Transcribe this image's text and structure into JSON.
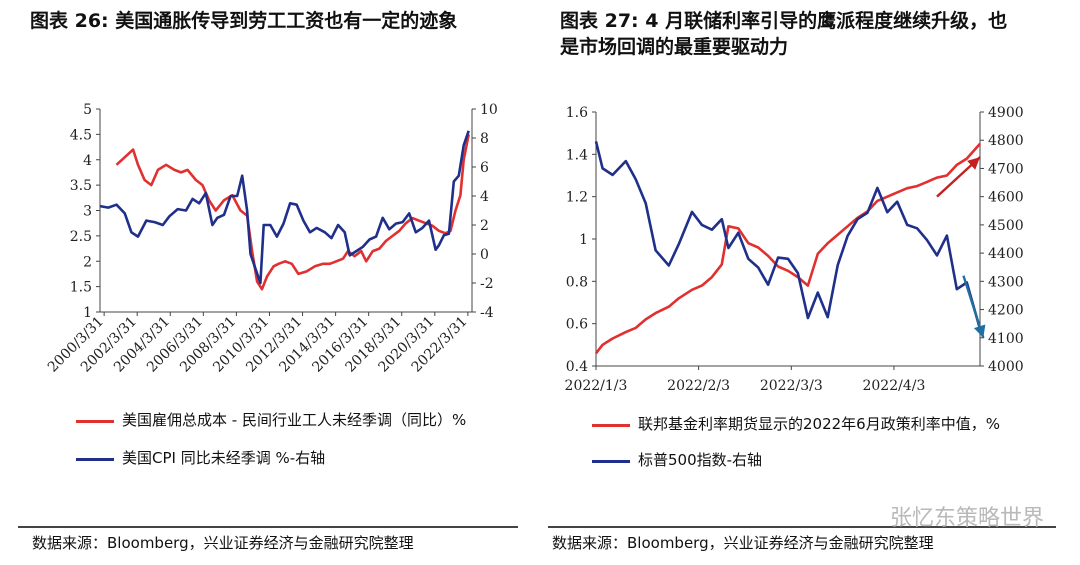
{
  "left": {
    "title": "图表 26:  美国通胀传导到劳工工资也有一定的迹象",
    "legend": [
      {
        "label": "美国雇佣总成本 - 民间行业工人未经季调（同比）%",
        "color": "#e03030"
      },
      {
        "label": "美国CPI 同比未经季调 %-右轴",
        "color": "#1f2f8a"
      }
    ],
    "source": "数据来源：Bloomberg，兴业证券经济与金融研究院整理"
  },
  "right": {
    "title_line1": "图表 27:  4 月联储利率引导的鹰派程度继续升级，也",
    "title_line2": "是市场回调的最重要驱动力",
    "legend": [
      {
        "label": "联邦基金利率期货显示的2022年6月政策利率中值，%",
        "color": "#e03030"
      },
      {
        "label": "标普500指数-右轴",
        "color": "#1f2f8a"
      }
    ],
    "source": "数据来源：Bloomberg，兴业证券经济与金融研究院整理"
  },
  "watermark": "张忆东策略世界",
  "chart_data": [
    {
      "type": "line",
      "xlabels": [
        "2000/3/31",
        "2002/3/31",
        "2004/3/31",
        "2006/3/31",
        "2008/3/31",
        "2010/3/31",
        "2012/3/31",
        "2014/3/31",
        "2016/3/31",
        "2018/3/31",
        "2020/3/31",
        "2022/3/31"
      ],
      "x_range": [
        2000.0,
        2022.5
      ],
      "y_left": {
        "min": 1,
        "max": 5,
        "ticks": [
          1,
          1.5,
          2,
          2.5,
          3,
          3.5,
          4,
          4.5,
          5
        ]
      },
      "y_right": {
        "min": -4,
        "max": 10,
        "ticks": [
          -4,
          -2,
          0,
          2,
          4,
          6,
          8,
          10
        ]
      },
      "grid": false,
      "series": [
        {
          "axis": "left",
          "color": "#e03030",
          "x": [
            2001.0,
            2001.5,
            2002.0,
            2002.3,
            2002.7,
            2003.1,
            2003.5,
            2004.0,
            2004.5,
            2004.9,
            2005.3,
            2005.8,
            2006.2,
            2006.6,
            2007.0,
            2007.5,
            2008.0,
            2008.5,
            2008.9,
            2009.2,
            2009.5,
            2009.8,
            2010.1,
            2010.5,
            2010.8,
            2011.2,
            2011.6,
            2012.0,
            2012.5,
            2013.0,
            2013.5,
            2013.9,
            2014.3,
            2014.7,
            2015.0,
            2015.4,
            2015.8,
            2016.1,
            2016.5,
            2016.9,
            2017.3,
            2017.7,
            2018.1,
            2018.5,
            2018.9,
            2019.3,
            2019.7,
            2020.1,
            2020.5,
            2020.9,
            2021.2,
            2021.5,
            2021.8,
            2022.0,
            2022.3
          ],
          "y": [
            3.9,
            4.05,
            4.2,
            3.9,
            3.6,
            3.5,
            3.8,
            3.9,
            3.8,
            3.75,
            3.8,
            3.6,
            3.5,
            3.2,
            3.0,
            3.2,
            3.3,
            3.0,
            2.9,
            2.2,
            1.6,
            1.45,
            1.7,
            1.9,
            1.95,
            2.0,
            1.95,
            1.75,
            1.8,
            1.9,
            1.95,
            1.95,
            2.0,
            2.05,
            2.2,
            2.1,
            2.2,
            2.0,
            2.2,
            2.25,
            2.4,
            2.5,
            2.6,
            2.75,
            2.85,
            2.8,
            2.75,
            2.7,
            2.6,
            2.55,
            2.6,
            3.0,
            3.3,
            4.0,
            4.5
          ]
        },
        {
          "axis": "right",
          "color": "#1f2f8a",
          "x": [
            2000.0,
            2000.5,
            2001.0,
            2001.5,
            2001.9,
            2002.3,
            2002.8,
            2003.3,
            2003.8,
            2004.2,
            2004.7,
            2005.2,
            2005.6,
            2006.0,
            2006.4,
            2006.8,
            2007.1,
            2007.5,
            2007.9,
            2008.3,
            2008.6,
            2008.9,
            2009.1,
            2009.4,
            2009.7,
            2009.9,
            2010.3,
            2010.7,
            2011.1,
            2011.5,
            2011.9,
            2012.3,
            2012.7,
            2013.1,
            2013.6,
            2014.0,
            2014.4,
            2014.8,
            2015.1,
            2015.5,
            2015.9,
            2016.3,
            2016.7,
            2017.1,
            2017.5,
            2017.9,
            2018.3,
            2018.7,
            2019.1,
            2019.5,
            2019.9,
            2020.3,
            2020.5,
            2020.8,
            2021.1,
            2021.4,
            2021.7,
            2022.0,
            2022.3
          ],
          "y": [
            3.3,
            3.2,
            3.4,
            2.8,
            1.5,
            1.2,
            2.3,
            2.2,
            2.0,
            2.6,
            3.1,
            3.0,
            3.8,
            3.5,
            4.2,
            2.0,
            2.5,
            2.7,
            4.0,
            4.0,
            5.4,
            3.0,
            0.0,
            -1.0,
            -2.0,
            2.0,
            2.0,
            1.2,
            2.1,
            3.5,
            3.4,
            2.3,
            1.5,
            1.8,
            1.5,
            1.1,
            2.0,
            1.5,
            -0.1,
            0.2,
            0.5,
            1.0,
            1.2,
            2.5,
            1.7,
            2.1,
            2.2,
            2.8,
            1.5,
            1.8,
            2.3,
            0.3,
            0.6,
            1.3,
            1.4,
            5.0,
            5.4,
            7.5,
            8.5
          ]
        }
      ]
    },
    {
      "type": "line",
      "xlabels": [
        "2022/1/3",
        "2022/2/3",
        "2022/3/3",
        "2022/4/3"
      ],
      "x_range": [
        "2022-01-03",
        "2022-04-29"
      ],
      "y_left": {
        "min": 0.4,
        "max": 1.6,
        "ticks": [
          0.4,
          0.6,
          0.8,
          1,
          1.2,
          1.4,
          1.6
        ]
      },
      "y_right": {
        "min": 4000,
        "max": 4900,
        "ticks": [
          4000,
          4100,
          4200,
          4300,
          4400,
          4500,
          4600,
          4700,
          4800,
          4900
        ]
      },
      "grid": false,
      "series": [
        {
          "axis": "left",
          "color": "#e03030",
          "x": [
            "2022-01-03",
            "2022-01-05",
            "2022-01-08",
            "2022-01-12",
            "2022-01-15",
            "2022-01-18",
            "2022-01-21",
            "2022-01-25",
            "2022-01-28",
            "2022-02-01",
            "2022-02-04",
            "2022-02-07",
            "2022-02-10",
            "2022-02-12",
            "2022-02-15",
            "2022-02-18",
            "2022-02-21",
            "2022-02-24",
            "2022-02-27",
            "2022-03-02",
            "2022-03-05",
            "2022-03-08",
            "2022-03-11",
            "2022-03-14",
            "2022-03-17",
            "2022-03-20",
            "2022-03-23",
            "2022-03-26",
            "2022-03-29",
            "2022-04-01",
            "2022-04-04",
            "2022-04-07",
            "2022-04-10",
            "2022-04-13",
            "2022-04-16",
            "2022-04-19",
            "2022-04-22",
            "2022-04-25",
            "2022-04-29"
          ],
          "y": [
            0.46,
            0.5,
            0.53,
            0.56,
            0.58,
            0.62,
            0.65,
            0.68,
            0.72,
            0.76,
            0.78,
            0.82,
            0.88,
            1.06,
            1.05,
            0.98,
            0.96,
            0.92,
            0.87,
            0.85,
            0.82,
            0.78,
            0.93,
            0.98,
            1.02,
            1.06,
            1.1,
            1.13,
            1.18,
            1.2,
            1.22,
            1.24,
            1.25,
            1.27,
            1.29,
            1.3,
            1.35,
            1.38,
            1.45
          ]
        },
        {
          "axis": "right",
          "color": "#1f2f8a",
          "x": [
            "2022-01-03",
            "2022-01-05",
            "2022-01-08",
            "2022-01-12",
            "2022-01-15",
            "2022-01-18",
            "2022-01-21",
            "2022-01-25",
            "2022-01-28",
            "2022-02-01",
            "2022-02-04",
            "2022-02-07",
            "2022-02-10",
            "2022-02-12",
            "2022-02-15",
            "2022-02-18",
            "2022-02-21",
            "2022-02-24",
            "2022-02-27",
            "2022-03-02",
            "2022-03-05",
            "2022-03-08",
            "2022-03-11",
            "2022-03-14",
            "2022-03-17",
            "2022-03-20",
            "2022-03-23",
            "2022-03-26",
            "2022-03-29",
            "2022-04-01",
            "2022-04-04",
            "2022-04-07",
            "2022-04-10",
            "2022-04-13",
            "2022-04-16",
            "2022-04-19",
            "2022-04-22",
            "2022-04-25",
            "2022-04-29"
          ],
          "y": [
            4796,
            4700,
            4677,
            4726,
            4662,
            4577,
            4410,
            4356,
            4432,
            4546,
            4500,
            4483,
            4520,
            4418,
            4472,
            4380,
            4349,
            4288,
            4384,
            4380,
            4329,
            4170,
            4260,
            4173,
            4357,
            4461,
            4520,
            4543,
            4631,
            4545,
            4582,
            4500,
            4488,
            4446,
            4392,
            4462,
            4272,
            4296,
            4131
          ]
        }
      ],
      "annotations": [
        {
          "type": "arrow",
          "color": "#c42020",
          "from": [
            "2022-04-16",
            4600
          ],
          "to": [
            "2022-04-29",
            4740
          ]
        },
        {
          "type": "arrow",
          "color": "#1f6fa0",
          "from": [
            "2022-04-24",
            4320
          ],
          "to": [
            "2022-04-30",
            4100
          ]
        }
      ]
    }
  ]
}
